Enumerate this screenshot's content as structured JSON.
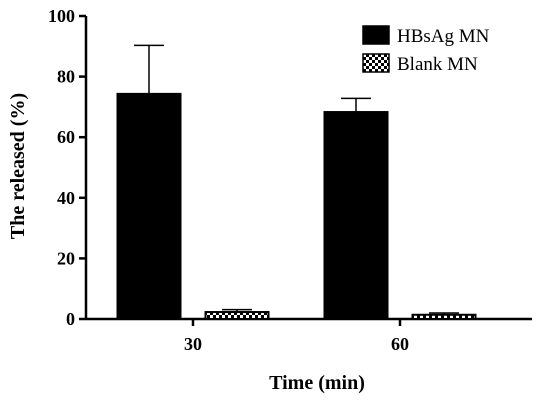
{
  "chart_data": {
    "type": "bar",
    "title": "",
    "xlabel": "Time (min)",
    "ylabel": "The released (%)",
    "ylim": [
      0,
      100
    ],
    "yticks": [
      0,
      20,
      40,
      60,
      80,
      100
    ],
    "categories": [
      "30",
      "60"
    ],
    "series": [
      {
        "name": "HBsAg MN",
        "values": [
          74.3,
          68.3
        ],
        "error": [
          16.0,
          4.5
        ],
        "color": "#000000",
        "pattern": "solid"
      },
      {
        "name": "Blank MN",
        "values": [
          2.3,
          1.4
        ],
        "error": [
          0.8,
          0.6
        ],
        "color": "#000000",
        "pattern": "checker"
      }
    ],
    "legend_position": "top-right",
    "grid": false
  }
}
